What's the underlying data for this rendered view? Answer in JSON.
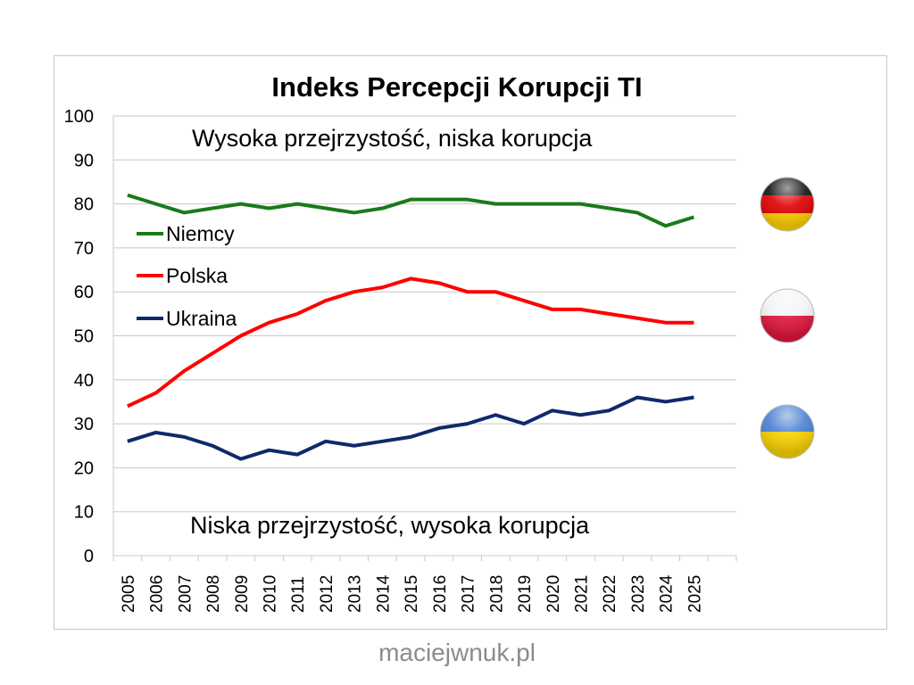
{
  "chart_data": {
    "type": "line",
    "title": "Indeks Percepcji Korupcji TI",
    "annotations": [
      "Wysoka przejrzystość, niska korupcja",
      "Niska przejrzystość, wysoka korupcja"
    ],
    "categories": [
      "2005",
      "2006",
      "2007",
      "2008",
      "2009",
      "2010",
      "2011",
      "2012",
      "2013",
      "2014",
      "2015",
      "2016",
      "2017",
      "2018",
      "2019",
      "2020",
      "2021",
      "2022",
      "2023",
      "2024",
      "2025"
    ],
    "ylim": [
      0,
      100
    ],
    "yticks": [
      0,
      10,
      20,
      30,
      40,
      50,
      60,
      70,
      80,
      90,
      100
    ],
    "grid": true,
    "legend": "left",
    "series": [
      {
        "name": "Niemcy",
        "color": "#1a7a1a",
        "flag": "germany-flag",
        "values": [
          82,
          80,
          78,
          79,
          80,
          79,
          80,
          79,
          78,
          79,
          81,
          81,
          81,
          80,
          80,
          80,
          80,
          79,
          78,
          75,
          77
        ]
      },
      {
        "name": "Polska",
        "color": "#ff0000",
        "flag": "poland-flag",
        "values": [
          34,
          37,
          42,
          46,
          50,
          53,
          55,
          58,
          60,
          61,
          63,
          62,
          60,
          60,
          58,
          56,
          56,
          55,
          54,
          53,
          53
        ]
      },
      {
        "name": "Ukraina",
        "color": "#0e2a6b",
        "flag": "ukraine-flag",
        "values": [
          26,
          28,
          27,
          25,
          22,
          24,
          23,
          26,
          25,
          26,
          27,
          29,
          30,
          32,
          30,
          33,
          32,
          33,
          36,
          35,
          36
        ]
      }
    ]
  },
  "footer": "maciejwnuk.pl"
}
